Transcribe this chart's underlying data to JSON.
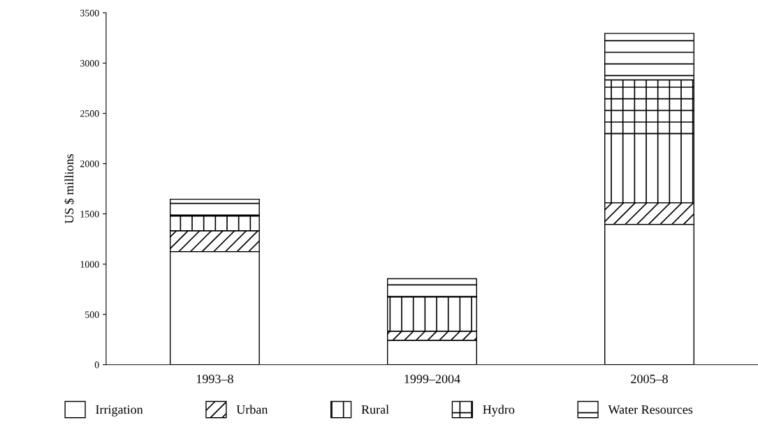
{
  "chart_data": {
    "type": "bar",
    "stacked": true,
    "ylabel": "US $ millions",
    "categories": [
      "1993–8",
      "1999–2004",
      "2005–8"
    ],
    "series": [
      {
        "name": "Irrigation",
        "color": "#ffffff",
        "values": [
          1125,
          243,
          1396
        ]
      },
      {
        "name": "Urban",
        "color": "#000000",
        "values": [
          208,
          90,
          215
        ]
      },
      {
        "name": "Rural",
        "color": "#000000",
        "values": [
          146,
          341,
          688
        ]
      },
      {
        "name": "Hydro",
        "color": "#000000",
        "values": [
          0,
          0,
          534
        ]
      },
      {
        "name": "Water Resources",
        "color": "#000000",
        "values": [
          167,
          181,
          463
        ]
      }
    ],
    "ylim": [
      0,
      3500
    ],
    "yticks": [
      0,
      500,
      1000,
      1500,
      2000,
      2500,
      3000,
      3500
    ],
    "grid": false,
    "legend": "bottom"
  }
}
